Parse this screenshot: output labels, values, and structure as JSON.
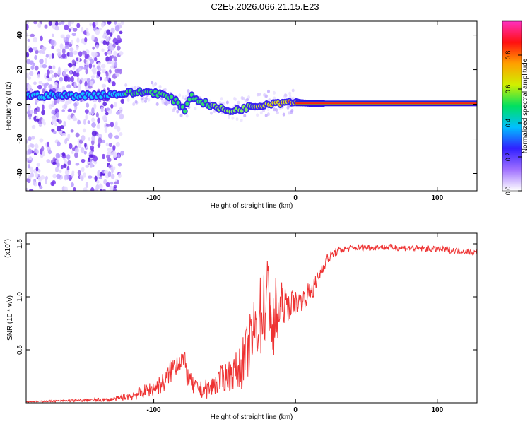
{
  "title": "C2E5.2026.066.21.15.E23",
  "chart_data": [
    {
      "type": "heatmap",
      "xlabel": "Height of straight line (km)",
      "ylabel": "Frequency (Hz)",
      "xlim": [
        -190,
        128
      ],
      "ylim": [
        -50,
        48
      ],
      "xticks": [
        -100,
        0,
        100
      ],
      "yticks": [
        -40,
        -20,
        0,
        20,
        40
      ],
      "ridge": {
        "x": [
          -187,
          -150,
          -125,
          -110,
          -100,
          -92,
          -85,
          -78,
          -74,
          -70,
          -62,
          -55,
          -48,
          -40,
          -30,
          -22,
          -15,
          -8,
          -2,
          3,
          10,
          20,
          128
        ],
        "freq": [
          5,
          5,
          6,
          7,
          7,
          5,
          2,
          -3,
          5,
          3,
          0,
          -2,
          -4,
          -3,
          -1,
          0,
          1,
          1,
          2,
          1,
          0.5,
          0.5,
          0.5
        ]
      },
      "colorbar": {
        "label": "Normalized spectral amplitude",
        "ticks": [
          0.0,
          0.2,
          0.4,
          0.6,
          0.8
        ],
        "colors": [
          "#ffffff",
          "#a070ff",
          "#3020ff",
          "#00c0ff",
          "#00e060",
          "#d0f000",
          "#ffa000",
          "#ff1010",
          "#ff30c0"
        ]
      }
    },
    {
      "type": "line",
      "xlabel": "Height of straight line (km)",
      "ylabel": "SNR (10 * v/v)",
      "scale_label": "(x10",
      "scale_exp": "4",
      "scale_close": ")",
      "xlim": [
        -190,
        128
      ],
      "ylim": [
        0,
        1.6
      ],
      "xticks": [
        -100,
        0,
        100
      ],
      "yticks": [
        0.5,
        1.0,
        1.5
      ],
      "ytick_labels": [
        "0.5",
        "1.0",
        "1.5"
      ],
      "series": [
        {
          "name": "SNR",
          "color": "#ee3333",
          "x": [
            -190,
            -160,
            -130,
            -122,
            -115,
            -108,
            -100,
            -92,
            -88,
            -84,
            -80,
            -78,
            -76,
            -72,
            -66,
            -60,
            -55,
            -50,
            -44,
            -40,
            -36,
            -32,
            -28,
            -24,
            -20,
            -18,
            -16,
            -14,
            -12,
            -10,
            -6,
            -2,
            2,
            6,
            10,
            14,
            18,
            22,
            28,
            34,
            40,
            60,
            80,
            100,
            128
          ],
          "y": [
            0.01,
            0.02,
            0.03,
            0.05,
            0.07,
            0.1,
            0.14,
            0.2,
            0.3,
            0.38,
            0.42,
            0.36,
            0.24,
            0.15,
            0.12,
            0.14,
            0.2,
            0.24,
            0.28,
            0.32,
            0.4,
            0.55,
            0.7,
            0.85,
            0.95,
            1.1,
            0.55,
            0.85,
            0.8,
            0.95,
            0.9,
            0.95,
            0.95,
            0.98,
            1.05,
            1.1,
            1.25,
            1.35,
            1.42,
            1.45,
            1.46,
            1.47,
            1.46,
            1.45,
            1.42
          ],
          "noise": [
            0.005,
            0.01,
            0.02,
            0.03,
            0.05,
            0.06,
            0.08,
            0.1,
            0.12,
            0.12,
            0.12,
            0.12,
            0.1,
            0.08,
            0.08,
            0.1,
            0.12,
            0.14,
            0.16,
            0.2,
            0.26,
            0.3,
            0.35,
            0.4,
            0.45,
            0.5,
            0.45,
            0.35,
            0.25,
            0.2,
            0.15,
            0.12,
            0.1,
            0.1,
            0.1,
            0.1,
            0.08,
            0.06,
            0.04,
            0.03,
            0.03,
            0.03,
            0.03,
            0.03,
            0.03
          ]
        }
      ]
    }
  ]
}
